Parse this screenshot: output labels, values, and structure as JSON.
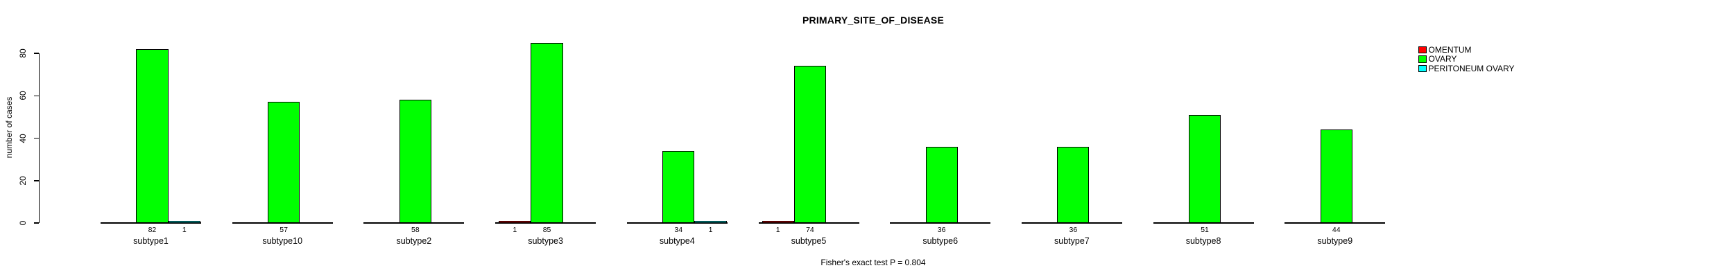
{
  "figure": {
    "title": "PRIMARY_SITE_OF_DISEASE",
    "caption": "Fisher's exact test P = 0.804",
    "ylabel": "number of cases"
  },
  "legend": {
    "position": "right",
    "items": [
      {
        "label": "OMENTUM",
        "color": "#ff0000"
      },
      {
        "label": "OVARY",
        "color": "#00ff00"
      },
      {
        "label": "PERITONEUM OVARY",
        "color": "#00ffff"
      }
    ]
  },
  "chart_data": {
    "type": "bar",
    "title": "PRIMARY_SITE_OF_DISEASE",
    "xlabel": "",
    "ylabel": "number of cases",
    "ylim": [
      0,
      80
    ],
    "yticks": [
      0,
      20,
      40,
      60,
      80
    ],
    "grid": false,
    "legend_position": "right",
    "bar_value_labels": true,
    "annotation": "Fisher's exact test P = 0.804",
    "categories": [
      "subtype1",
      "subtype10",
      "subtype2",
      "subtype3",
      "subtype4",
      "subtype5",
      "subtype6",
      "subtype7",
      "subtype8",
      "subtype9"
    ],
    "series": [
      {
        "name": "OMENTUM",
        "color": "#ff0000",
        "values": [
          0,
          0,
          0,
          1,
          0,
          1,
          0,
          0,
          0,
          0
        ]
      },
      {
        "name": "OVARY",
        "color": "#00ff00",
        "values": [
          82,
          57,
          58,
          85,
          34,
          74,
          36,
          36,
          51,
          44
        ]
      },
      {
        "name": "PERITONEUM OVARY",
        "color": "#00ffff",
        "values": [
          1,
          0,
          0,
          0,
          1,
          0,
          0,
          0,
          0,
          0
        ]
      }
    ]
  }
}
